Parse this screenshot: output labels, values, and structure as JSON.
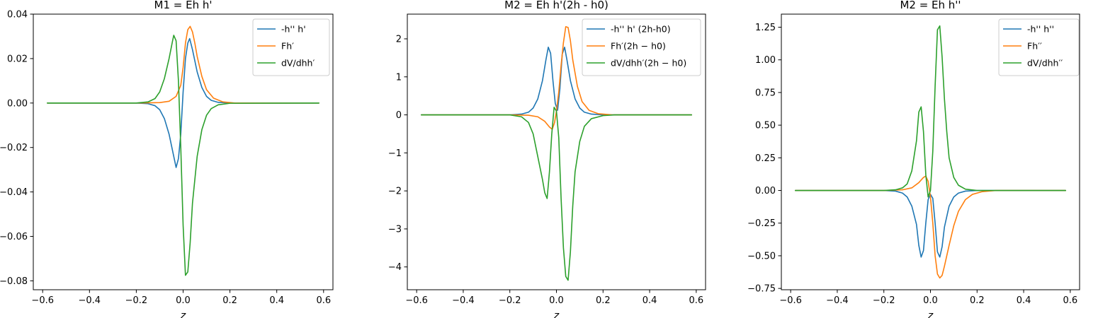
{
  "figure": {
    "colors": {
      "blue": "#1f77b4",
      "orange": "#ff7f0e",
      "green": "#2ca02c",
      "axis": "#000000",
      "legend_border": "#cccccc",
      "background": "#ffffff"
    }
  },
  "chart_data": [
    {
      "type": "line",
      "title": "M1 = Eh h'",
      "xlabel": "z",
      "ylabel": "",
      "xlim": [
        -0.64,
        0.64
      ],
      "ylim": [
        -0.084,
        0.04
      ],
      "xticks": [
        -0.6,
        -0.4,
        -0.2,
        0.0,
        0.2,
        0.4,
        0.6
      ],
      "xtick_labels": [
        "−0.6",
        "−0.4",
        "−0.2",
        "0.0",
        "0.2",
        "0.4",
        "0.6"
      ],
      "yticks": [
        0.04,
        0.02,
        0.0,
        -0.02,
        -0.04,
        -0.06,
        -0.08
      ],
      "ytick_labels": [
        "0.04",
        "0.02",
        "0.00",
        "−0.02",
        "−0.04",
        "−0.06",
        "−0.08"
      ],
      "grid": false,
      "legend_position": "upper right",
      "series": [
        {
          "name": "-h'' h'",
          "color": "#1f77b4",
          "points": [
            [
              -0.58,
              0.0
            ],
            [
              -0.2,
              0.0
            ],
            [
              -0.15,
              -0.0003
            ],
            [
              -0.12,
              -0.0012
            ],
            [
              -0.1,
              -0.003
            ],
            [
              -0.08,
              -0.007
            ],
            [
              -0.06,
              -0.014
            ],
            [
              -0.04,
              -0.024
            ],
            [
              -0.03,
              -0.029
            ],
            [
              -0.02,
              -0.025
            ],
            [
              -0.01,
              -0.014
            ],
            [
              0.0,
              0.005
            ],
            [
              0.01,
              0.02
            ],
            [
              0.02,
              0.027
            ],
            [
              0.028,
              0.029
            ],
            [
              0.04,
              0.024
            ],
            [
              0.06,
              0.014
            ],
            [
              0.08,
              0.007
            ],
            [
              0.1,
              0.003
            ],
            [
              0.12,
              0.0012
            ],
            [
              0.15,
              0.0003
            ],
            [
              0.2,
              0.0
            ],
            [
              0.58,
              0.0
            ]
          ]
        },
        {
          "name": "Fh′",
          "color": "#ff7f0e",
          "points": [
            [
              -0.58,
              0.0
            ],
            [
              -0.2,
              0.0
            ],
            [
              -0.1,
              0.0002
            ],
            [
              -0.06,
              0.0008
            ],
            [
              -0.03,
              0.003
            ],
            [
              -0.01,
              0.008
            ],
            [
              0.0,
              0.016
            ],
            [
              0.01,
              0.027
            ],
            [
              0.02,
              0.033
            ],
            [
              0.03,
              0.0345
            ],
            [
              0.04,
              0.032
            ],
            [
              0.05,
              0.027
            ],
            [
              0.06,
              0.021
            ],
            [
              0.08,
              0.012
            ],
            [
              0.1,
              0.006
            ],
            [
              0.13,
              0.0022
            ],
            [
              0.17,
              0.0005
            ],
            [
              0.22,
              0.0
            ],
            [
              0.58,
              0.0
            ]
          ]
        },
        {
          "name": "dV/dhh′",
          "color": "#2ca02c",
          "points": [
            [
              -0.58,
              0.0
            ],
            [
              -0.2,
              0.0
            ],
            [
              -0.15,
              0.0005
            ],
            [
              -0.12,
              0.002
            ],
            [
              -0.1,
              0.005
            ],
            [
              -0.08,
              0.011
            ],
            [
              -0.06,
              0.02
            ],
            [
              -0.045,
              0.028
            ],
            [
              -0.04,
              0.0305
            ],
            [
              -0.03,
              0.028
            ],
            [
              -0.02,
              0.01
            ],
            [
              -0.01,
              -0.02
            ],
            [
              0.0,
              -0.055
            ],
            [
              0.01,
              -0.0775
            ],
            [
              0.02,
              -0.076
            ],
            [
              0.03,
              -0.063
            ],
            [
              0.04,
              -0.045
            ],
            [
              0.06,
              -0.024
            ],
            [
              0.08,
              -0.012
            ],
            [
              0.1,
              -0.0055
            ],
            [
              0.12,
              -0.0025
            ],
            [
              0.15,
              -0.0008
            ],
            [
              0.2,
              -0.0001
            ],
            [
              0.58,
              0.0
            ]
          ]
        }
      ]
    },
    {
      "type": "line",
      "title": "M2 = Eh h'(2h - h0)",
      "xlabel": "z",
      "ylabel": "",
      "xlim": [
        -0.64,
        0.64
      ],
      "ylim": [
        -4.6,
        2.65
      ],
      "xticks": [
        -0.6,
        -0.4,
        -0.2,
        0.0,
        0.2,
        0.4,
        0.6
      ],
      "xtick_labels": [
        "−0.6",
        "−0.4",
        "−0.2",
        "0.0",
        "0.2",
        "0.4",
        "0.6"
      ],
      "yticks": [
        2,
        1,
        0,
        -1,
        -2,
        -3,
        -4
      ],
      "ytick_labels": [
        "2",
        "1",
        "0",
        "−1",
        "−2",
        "−3",
        "−4"
      ],
      "grid": false,
      "legend_position": "upper right",
      "series": [
        {
          "name": "-h'' h' (2h-h0)",
          "color": "#1f77b4",
          "points": [
            [
              -0.58,
              0.0
            ],
            [
              -0.2,
              0.0
            ],
            [
              -0.15,
              0.02
            ],
            [
              -0.12,
              0.07
            ],
            [
              -0.1,
              0.18
            ],
            [
              -0.08,
              0.42
            ],
            [
              -0.06,
              0.9
            ],
            [
              -0.045,
              1.45
            ],
            [
              -0.035,
              1.78
            ],
            [
              -0.025,
              1.62
            ],
            [
              -0.015,
              0.9
            ],
            [
              -0.005,
              0.3
            ],
            [
              0.005,
              0.12
            ],
            [
              0.015,
              0.7
            ],
            [
              0.025,
              1.6
            ],
            [
              0.035,
              1.78
            ],
            [
              0.045,
              1.45
            ],
            [
              0.06,
              0.9
            ],
            [
              0.08,
              0.42
            ],
            [
              0.1,
              0.18
            ],
            [
              0.12,
              0.07
            ],
            [
              0.15,
              0.02
            ],
            [
              0.2,
              0.0
            ],
            [
              0.58,
              0.0
            ]
          ]
        },
        {
          "name": "Fh′(2h − h0)",
          "color": "#ff7f0e",
          "points": [
            [
              -0.58,
              0.0
            ],
            [
              -0.2,
              0.0
            ],
            [
              -0.12,
              -0.01
            ],
            [
              -0.08,
              -0.05
            ],
            [
              -0.05,
              -0.17
            ],
            [
              -0.03,
              -0.32
            ],
            [
              -0.018,
              -0.38
            ],
            [
              -0.008,
              -0.2
            ],
            [
              0.0,
              0.1
            ],
            [
              0.01,
              0.6
            ],
            [
              0.02,
              1.3
            ],
            [
              0.03,
              1.9
            ],
            [
              0.04,
              2.32
            ],
            [
              0.05,
              2.3
            ],
            [
              0.06,
              1.95
            ],
            [
              0.07,
              1.45
            ],
            [
              0.09,
              0.75
            ],
            [
              0.11,
              0.35
            ],
            [
              0.14,
              0.12
            ],
            [
              0.18,
              0.03
            ],
            [
              0.24,
              0.0
            ],
            [
              0.58,
              0.0
            ]
          ]
        },
        {
          "name": "dV/dhh′(2h − h0)",
          "color": "#2ca02c",
          "points": [
            [
              -0.58,
              0.0
            ],
            [
              -0.2,
              0.0
            ],
            [
              -0.15,
              -0.05
            ],
            [
              -0.12,
              -0.2
            ],
            [
              -0.1,
              -0.5
            ],
            [
              -0.08,
              -1.1
            ],
            [
              -0.06,
              -1.7
            ],
            [
              -0.05,
              -2.05
            ],
            [
              -0.04,
              -2.2
            ],
            [
              -0.03,
              -1.5
            ],
            [
              -0.02,
              -0.5
            ],
            [
              -0.01,
              0.2
            ],
            [
              0.0,
              0.1
            ],
            [
              0.01,
              -0.6
            ],
            [
              0.02,
              -2.2
            ],
            [
              0.03,
              -3.5
            ],
            [
              0.04,
              -4.25
            ],
            [
              0.05,
              -4.35
            ],
            [
              0.06,
              -3.6
            ],
            [
              0.07,
              -2.4
            ],
            [
              0.08,
              -1.5
            ],
            [
              0.1,
              -0.7
            ],
            [
              0.12,
              -0.3
            ],
            [
              0.15,
              -0.1
            ],
            [
              0.2,
              -0.02
            ],
            [
              0.25,
              0.0
            ],
            [
              0.58,
              0.0
            ]
          ]
        }
      ]
    },
    {
      "type": "line",
      "title": "M2 = Eh h''",
      "xlabel": "z",
      "ylabel": "",
      "xlim": [
        -0.64,
        0.64
      ],
      "ylim": [
        -0.76,
        1.35
      ],
      "xticks": [
        -0.6,
        -0.4,
        -0.2,
        0.0,
        0.2,
        0.4,
        0.6
      ],
      "xtick_labels": [
        "−0.6",
        "−0.4",
        "−0.2",
        "0.0",
        "0.2",
        "0.4",
        "0.6"
      ],
      "yticks": [
        1.25,
        1.0,
        0.75,
        0.5,
        0.25,
        0.0,
        -0.25,
        -0.5,
        -0.75
      ],
      "ytick_labels": [
        "1.25",
        "1.00",
        "0.75",
        "0.50",
        "0.25",
        "0.00",
        "−0.25",
        "−0.50",
        "−0.75"
      ],
      "grid": false,
      "legend_position": "upper right",
      "series": [
        {
          "name": "-h'' h''",
          "color": "#1f77b4",
          "points": [
            [
              -0.58,
              0.0
            ],
            [
              -0.2,
              0.0
            ],
            [
              -0.15,
              -0.005
            ],
            [
              -0.12,
              -0.02
            ],
            [
              -0.1,
              -0.05
            ],
            [
              -0.08,
              -0.12
            ],
            [
              -0.06,
              -0.26
            ],
            [
              -0.05,
              -0.42
            ],
            [
              -0.04,
              -0.51
            ],
            [
              -0.03,
              -0.46
            ],
            [
              -0.02,
              -0.25
            ],
            [
              -0.01,
              -0.07
            ],
            [
              0.0,
              -0.03
            ],
            [
              0.01,
              -0.06
            ],
            [
              0.02,
              -0.25
            ],
            [
              0.03,
              -0.47
            ],
            [
              0.04,
              -0.51
            ],
            [
              0.05,
              -0.43
            ],
            [
              0.06,
              -0.28
            ],
            [
              0.08,
              -0.12
            ],
            [
              0.1,
              -0.05
            ],
            [
              0.12,
              -0.02
            ],
            [
              0.15,
              -0.005
            ],
            [
              0.2,
              0.0
            ],
            [
              0.58,
              0.0
            ]
          ]
        },
        {
          "name": "Fh′′",
          "color": "#ff7f0e",
          "points": [
            [
              -0.58,
              0.0
            ],
            [
              -0.2,
              0.0
            ],
            [
              -0.12,
              0.005
            ],
            [
              -0.08,
              0.02
            ],
            [
              -0.05,
              0.06
            ],
            [
              -0.03,
              0.1
            ],
            [
              -0.02,
              0.11
            ],
            [
              -0.01,
              0.07
            ],
            [
              0.0,
              -0.05
            ],
            [
              0.01,
              -0.25
            ],
            [
              0.02,
              -0.5
            ],
            [
              0.03,
              -0.64
            ],
            [
              0.04,
              -0.67
            ],
            [
              0.05,
              -0.65
            ],
            [
              0.06,
              -0.58
            ],
            [
              0.08,
              -0.42
            ],
            [
              0.1,
              -0.27
            ],
            [
              0.12,
              -0.16
            ],
            [
              0.15,
              -0.07
            ],
            [
              0.18,
              -0.03
            ],
            [
              0.22,
              -0.01
            ],
            [
              0.28,
              0.0
            ],
            [
              0.58,
              0.0
            ]
          ]
        },
        {
          "name": "dV/dhh′′",
          "color": "#2ca02c",
          "points": [
            [
              -0.58,
              0.0
            ],
            [
              -0.2,
              0.0
            ],
            [
              -0.15,
              0.005
            ],
            [
              -0.12,
              0.02
            ],
            [
              -0.1,
              0.05
            ],
            [
              -0.08,
              0.15
            ],
            [
              -0.06,
              0.38
            ],
            [
              -0.05,
              0.6
            ],
            [
              -0.04,
              0.64
            ],
            [
              -0.03,
              0.45
            ],
            [
              -0.02,
              0.12
            ],
            [
              -0.01,
              -0.05
            ],
            [
              0.0,
              0.0
            ],
            [
              0.01,
              0.3
            ],
            [
              0.02,
              0.8
            ],
            [
              0.03,
              1.23
            ],
            [
              0.04,
              1.26
            ],
            [
              0.05,
              1.02
            ],
            [
              0.06,
              0.7
            ],
            [
              0.07,
              0.45
            ],
            [
              0.08,
              0.25
            ],
            [
              0.1,
              0.1
            ],
            [
              0.12,
              0.04
            ],
            [
              0.15,
              0.01
            ],
            [
              0.2,
              0.0
            ],
            [
              0.58,
              0.0
            ]
          ]
        }
      ]
    }
  ]
}
